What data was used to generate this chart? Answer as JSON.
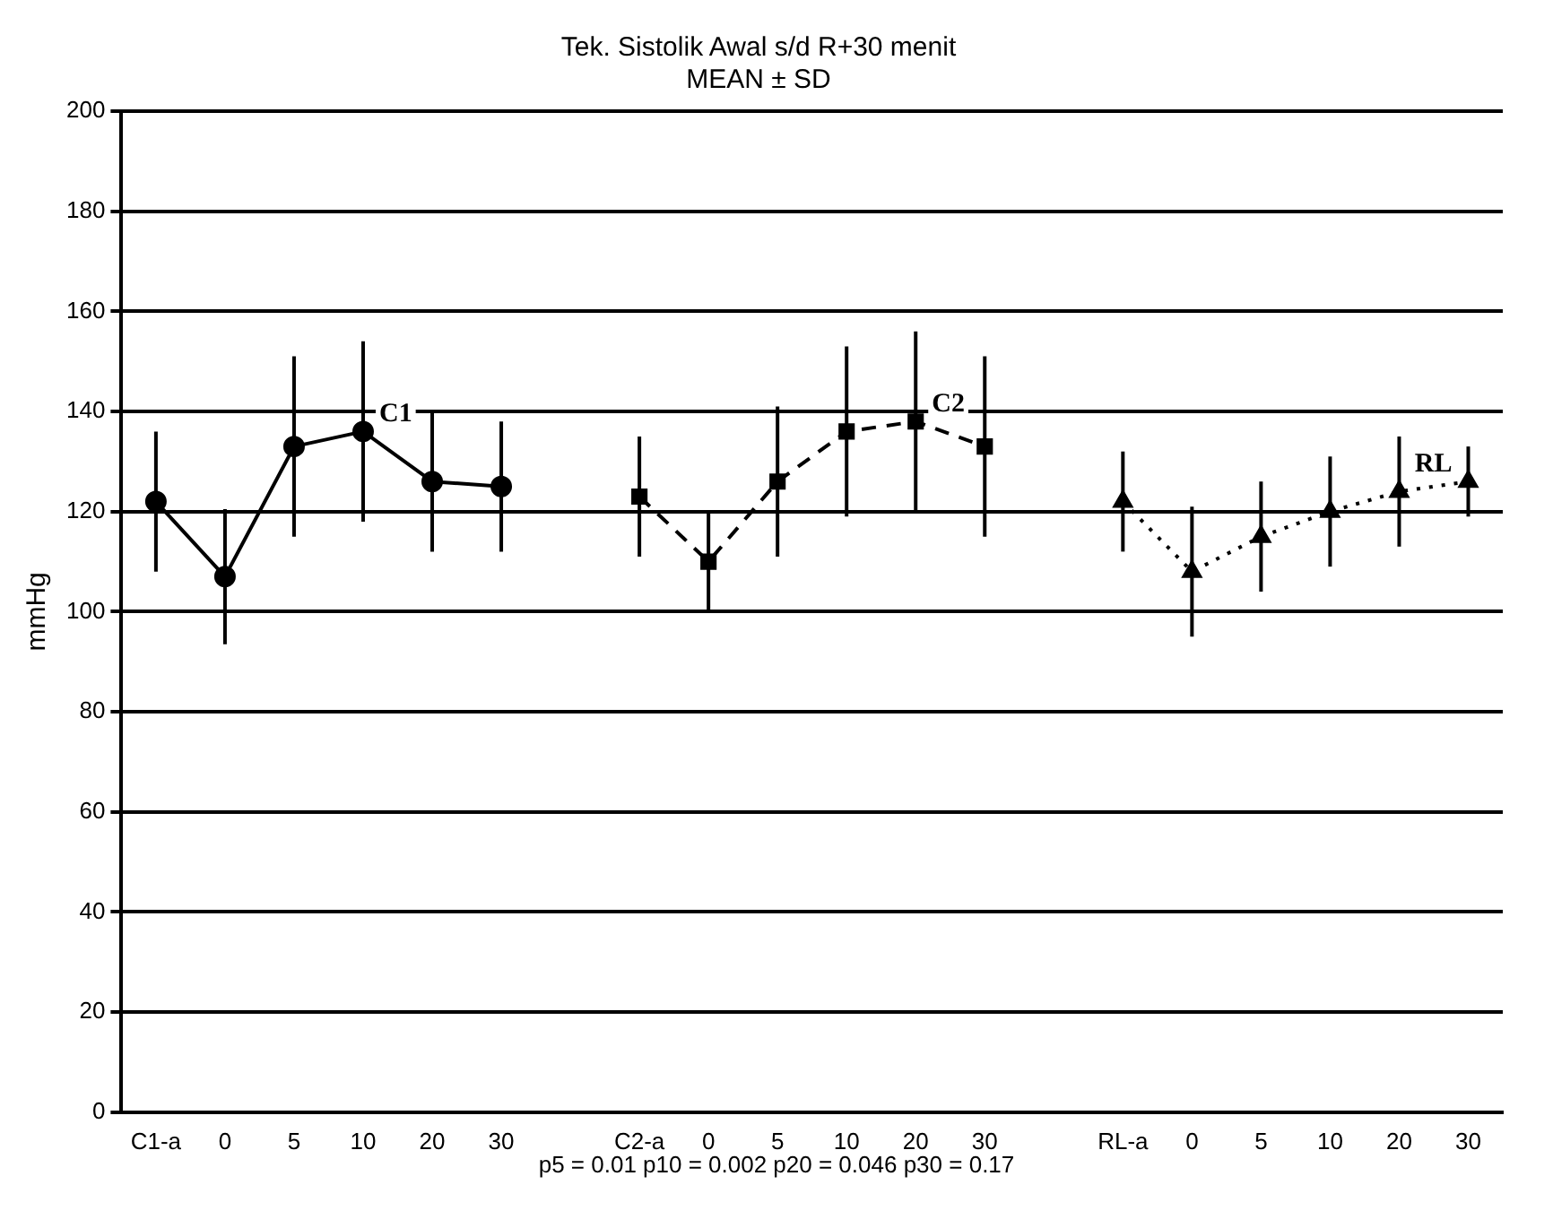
{
  "chart_data": {
    "type": "line",
    "title": "Tek. Sistolik Awal s/d R+30 menit",
    "subtitle": "MEAN ± SD",
    "ylabel": "mmHg",
    "categories": [
      "C1-a",
      "0",
      "5",
      "10",
      "20",
      "30",
      null,
      "C2-a",
      "0",
      "5",
      "10",
      "20",
      "30",
      null,
      "RL-a",
      "0",
      "5",
      "10",
      "20",
      "30"
    ],
    "series": [
      {
        "name": "C1",
        "color": "#000000",
        "marker": "circle",
        "line_style": "solid",
        "values": [
          122,
          107,
          133,
          136,
          126,
          125,
          null,
          null,
          null,
          null,
          null,
          null,
          null,
          null,
          null,
          null,
          null,
          null,
          null,
          null
        ],
        "errors": [
          14,
          13.5,
          18,
          18,
          14,
          13,
          null,
          null,
          null,
          null,
          null,
          null,
          null,
          null,
          null,
          null,
          null,
          null,
          null,
          null
        ]
      },
      {
        "name": "C2",
        "color": "#000000",
        "marker": "square",
        "line_style": "dashed",
        "values": [
          null,
          null,
          null,
          null,
          null,
          null,
          null,
          123,
          110,
          126,
          136,
          138,
          133,
          null,
          null,
          null,
          null,
          null,
          null,
          null
        ],
        "errors": [
          null,
          null,
          null,
          null,
          null,
          null,
          null,
          12,
          10,
          15,
          17,
          18,
          18,
          null,
          null,
          null,
          null,
          null,
          null,
          null
        ]
      },
      {
        "name": "RL",
        "color": "#000000",
        "marker": "triangle",
        "line_style": "dotted",
        "values": [
          null,
          null,
          null,
          null,
          null,
          null,
          null,
          null,
          null,
          null,
          null,
          null,
          null,
          null,
          122,
          108,
          115,
          120,
          124,
          126
        ],
        "errors": [
          null,
          null,
          null,
          null,
          null,
          null,
          null,
          null,
          null,
          null,
          null,
          null,
          null,
          null,
          10,
          13,
          11,
          11,
          11,
          7
        ]
      }
    ],
    "ylim": [
      0,
      200
    ],
    "yticks": [
      0,
      20,
      40,
      60,
      80,
      100,
      120,
      140,
      160,
      180,
      200
    ],
    "grid": "y",
    "legend": false,
    "annotations": [
      "p5 = 0.01 p10 = 0.002 p20 = 0.046 p30 = 0.17"
    ]
  }
}
